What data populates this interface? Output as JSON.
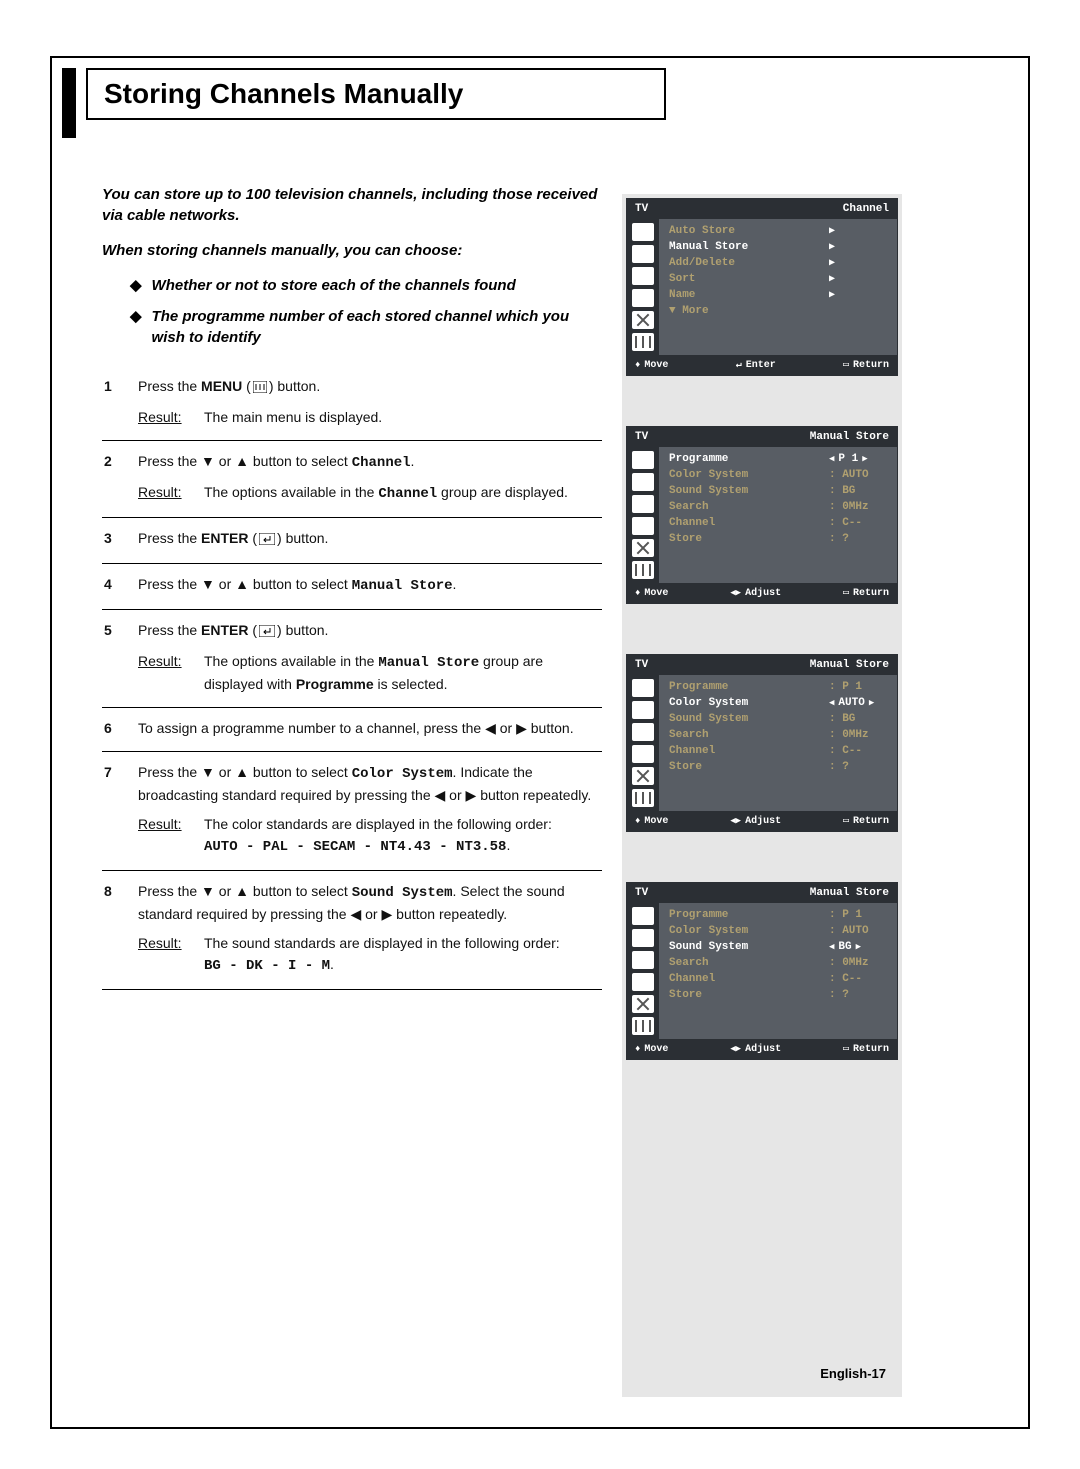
{
  "header_title": "Storing Channels Manually",
  "intro1": "You can store up to 100 television channels, including those received via cable networks.",
  "intro2": "When storing channels manually, you can choose:",
  "bullet1": "Whether or not to store each of the channels found",
  "bullet2": "The programme number of each stored channel which you wish to identify",
  "steps": {
    "s1": {
      "num": "1",
      "press": "Press the ",
      "menu_word": "MENU",
      "after": " button.",
      "result_label": "Result:",
      "result_text": "The main menu is displayed."
    },
    "s2": {
      "num": "2",
      "text_a": "Press the ",
      "text_b": " or ",
      "text_c": " button to select ",
      "target": "Channel",
      "period": ".",
      "result_label": "Result:",
      "result_a": "The options available in the ",
      "result_target": "Channel",
      "result_b": " group are displayed."
    },
    "s3": {
      "num": "3",
      "text": "Press the ",
      "enter_word": "ENTER",
      "after": " button."
    },
    "s4": {
      "num": "4",
      "text_a": "Press the ",
      "text_b": " or ",
      "text_c": " button to select ",
      "target": "Manual Store",
      "period": "."
    },
    "s5": {
      "num": "5",
      "text": "Press the ",
      "enter_word": "ENTER",
      "after": " button.",
      "result_label": "Result:",
      "result_a": "The options available in the ",
      "result_target": "Manual Store",
      "result_b": " group are displayed with ",
      "result_target2": "Programme",
      "result_c": " is selected."
    },
    "s6": {
      "num": "6",
      "text_a": "To assign a programme number to a channel, press the ",
      "text_b": " or ",
      "text_c": " button."
    },
    "s7": {
      "num": "7",
      "text_a": "Press the ",
      "text_b": " or ",
      "text_c": " button to select ",
      "target": "Color System",
      "text_d": ". Indicate the broadcasting standard required by pressing the ",
      "text_e": " or ",
      "text_f": " button repeatedly.",
      "result_label": "Result:",
      "result_text": "The color standards are displayed in the following order:",
      "order": "AUTO - PAL - SECAM - NT4.43 - NT3.58"
    },
    "s8": {
      "num": "8",
      "text_a": "Press the ",
      "text_b": " or ",
      "text_c": " button to select ",
      "target": "Sound System",
      "text_d": ". Select the sound standard required by pressing the ",
      "text_e": " or ",
      "text_f": " button repeatedly.",
      "result_label": "Result:",
      "result_text": "The sound standards are displayed in the following order:",
      "order": "BG - DK - I - M"
    }
  },
  "menus": {
    "m1": {
      "tv": "TV",
      "title": "Channel",
      "rows": [
        {
          "label": "Auto Store",
          "val": "",
          "arrow": true,
          "sel": false
        },
        {
          "label": "Manual Store",
          "val": "",
          "arrow": true,
          "sel": true
        },
        {
          "label": "Add/Delete",
          "val": "",
          "arrow": true,
          "sel": false
        },
        {
          "label": "Sort",
          "val": "",
          "arrow": true,
          "sel": false
        },
        {
          "label": "Name",
          "val": "",
          "arrow": true,
          "sel": false
        },
        {
          "label": "▼ More",
          "val": "",
          "arrow": false,
          "sel": false
        }
      ],
      "footer": {
        "a": "Move",
        "b": "Enter",
        "c": "Return"
      },
      "footer_icon_b": "enter"
    },
    "m2": {
      "tv": "TV",
      "title": "Manual Store",
      "rows": [
        {
          "label": "Programme",
          "val": "P  1",
          "sel": true,
          "bracket": true
        },
        {
          "label": "Color System",
          "val": ": AUTO",
          "sel": false
        },
        {
          "label": "Sound System",
          "val": ": BG",
          "sel": false
        },
        {
          "label": "Search",
          "val": ":  0MHz",
          "sel": false
        },
        {
          "label": "Channel",
          "val": ": C--",
          "sel": false
        },
        {
          "label": "Store",
          "val": ": ?",
          "sel": false
        }
      ],
      "footer": {
        "a": "Move",
        "b": "Adjust",
        "c": "Return"
      },
      "footer_icon_b": "adjust"
    },
    "m3": {
      "tv": "TV",
      "title": "Manual Store",
      "rows": [
        {
          "label": "Programme",
          "val": ": P  1",
          "sel": false
        },
        {
          "label": "Color System",
          "val": "AUTO",
          "sel": true,
          "bracket": true
        },
        {
          "label": "Sound System",
          "val": ": BG",
          "sel": false
        },
        {
          "label": "Search",
          "val": ":  0MHz",
          "sel": false
        },
        {
          "label": "Channel",
          "val": ": C--",
          "sel": false
        },
        {
          "label": "Store",
          "val": ": ?",
          "sel": false
        }
      ],
      "footer": {
        "a": "Move",
        "b": "Adjust",
        "c": "Return"
      },
      "footer_icon_b": "adjust"
    },
    "m4": {
      "tv": "TV",
      "title": "Manual Store",
      "rows": [
        {
          "label": "Programme",
          "val": ": P  1",
          "sel": false
        },
        {
          "label": "Color System",
          "val": ": AUTO",
          "sel": false
        },
        {
          "label": "Sound System",
          "val": "BG",
          "sel": true,
          "bracket": true
        },
        {
          "label": "Search",
          "val": ":  0MHz",
          "sel": false
        },
        {
          "label": "Channel",
          "val": ": C--",
          "sel": false
        },
        {
          "label": "Store",
          "val": ": ?",
          "sel": false
        }
      ],
      "footer": {
        "a": "Move",
        "b": "Adjust",
        "c": "Return"
      },
      "footer_icon_b": "adjust"
    }
  },
  "page_number": "English-17",
  "colors": {
    "menu_bg": "#585d64",
    "menu_header_bg": "#2b2f34",
    "menu_dim_text": "#b0a070",
    "menu_sel_text": "#ffffff",
    "page_bg": "#ffffff",
    "right_bg": "#e6e6e6"
  }
}
